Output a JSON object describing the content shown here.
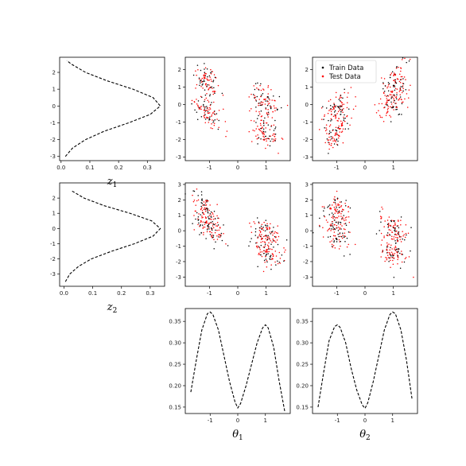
{
  "legend": {
    "entries": [
      {
        "label": "Train Data",
        "color": "#000000"
      },
      {
        "label": "Test Data",
        "color": "#ff0000"
      }
    ],
    "placement": "upper-left"
  },
  "chart_data": [
    {
      "id": "z1-marginal",
      "type": "line",
      "orientation": "horizontal-density",
      "xlabel": {
        "base": "z",
        "sub": "1"
      },
      "xlim": [
        -0.005,
        0.36
      ],
      "ylim": [
        -3.25,
        2.9
      ],
      "xticks": [
        "0.0",
        "0.1",
        "0.2",
        "0.3"
      ],
      "yticks": [
        "-3",
        "-2",
        "-1",
        "0",
        "1",
        "2"
      ],
      "series": [
        {
          "style": "dashed",
          "color": "#000000",
          "y": [
            -3.0,
            -2.5,
            -2.0,
            -1.5,
            -1.0,
            -0.5,
            0.0,
            0.5,
            1.0,
            1.5,
            2.0,
            2.5,
            2.7
          ],
          "x": [
            0.015,
            0.04,
            0.085,
            0.15,
            0.235,
            0.31,
            0.345,
            0.32,
            0.25,
            0.16,
            0.085,
            0.035,
            0.02
          ]
        }
      ]
    },
    {
      "id": "z1-theta1-scatter",
      "type": "scatter",
      "xlim": [
        -1.85,
        1.85
      ],
      "ylim": [
        -3.2,
        2.7
      ],
      "xticks": [
        "-1",
        "0",
        "1"
      ],
      "yticks": [
        "-3",
        "-2",
        "-1",
        "0",
        "1",
        "2"
      ],
      "clusters": [
        {
          "x": -1.1,
          "y": 1.3,
          "sx": 0.22,
          "sy": 0.55,
          "rho": -0.55
        },
        {
          "x": -1.1,
          "y": -0.4,
          "sx": 0.25,
          "sy": 0.45,
          "rho": -0.55
        },
        {
          "x": 0.95,
          "y": 0.2,
          "sx": 0.25,
          "sy": 0.45,
          "rho": -0.55
        },
        {
          "x": 0.95,
          "y": -1.5,
          "sx": 0.25,
          "sy": 0.55,
          "rho": -0.55
        }
      ]
    },
    {
      "id": "z1-theta2-scatter",
      "type": "scatter",
      "xlim": [
        -1.85,
        1.85
      ],
      "ylim": [
        -3.2,
        2.7
      ],
      "xticks": [
        "-1",
        "0",
        "1"
      ],
      "yticks": [
        "-3",
        "-2",
        "-1",
        "0",
        "1",
        "2"
      ],
      "clusters": [
        {
          "x": -1.0,
          "y": -0.3,
          "sx": 0.25,
          "sy": 0.45,
          "rho": 0.6
        },
        {
          "x": -1.0,
          "y": -1.6,
          "sx": 0.22,
          "sy": 0.55,
          "rho": 0.6
        },
        {
          "x": 1.0,
          "y": 1.2,
          "sx": 0.25,
          "sy": 0.6,
          "rho": 0.6
        },
        {
          "x": 1.0,
          "y": 0.1,
          "sx": 0.25,
          "sy": 0.5,
          "rho": 0.6
        }
      ],
      "legend": true
    },
    {
      "id": "z2-marginal",
      "type": "line",
      "orientation": "horizontal-density",
      "xlabel": {
        "base": "z",
        "sub": "2"
      },
      "xlim": [
        -0.015,
        0.35
      ],
      "ylim": [
        -3.8,
        3.0
      ],
      "xticks": [
        "0.0",
        "0.1",
        "0.2",
        "0.3"
      ],
      "yticks": [
        "-3",
        "-2",
        "-1",
        "0",
        "1",
        "2"
      ],
      "series": [
        {
          "style": "dashed",
          "color": "#000000",
          "y": [
            -3.5,
            -3.0,
            -2.5,
            -2.0,
            -1.5,
            -1.0,
            -0.5,
            0.0,
            0.5,
            1.0,
            1.5,
            2.0,
            2.5
          ],
          "x": [
            0.005,
            0.02,
            0.05,
            0.095,
            0.165,
            0.245,
            0.31,
            0.335,
            0.305,
            0.23,
            0.14,
            0.07,
            0.025
          ]
        }
      ]
    },
    {
      "id": "z2-theta1-scatter",
      "type": "scatter",
      "xlim": [
        -1.85,
        1.85
      ],
      "ylim": [
        -3.6,
        3.1
      ],
      "xticks": [
        "-1",
        "0",
        "1"
      ],
      "yticks": [
        "-3",
        "-2",
        "-1",
        "0",
        "1",
        "2",
        "3"
      ],
      "clusters": [
        {
          "x": -1.1,
          "y": 1.2,
          "sx": 0.25,
          "sy": 0.6,
          "rho": -0.55
        },
        {
          "x": -1.0,
          "y": 0.2,
          "sx": 0.25,
          "sy": 0.5,
          "rho": -0.55
        },
        {
          "x": 1.0,
          "y": -0.2,
          "sx": 0.25,
          "sy": 0.5,
          "rho": -0.55
        },
        {
          "x": 1.0,
          "y": -1.3,
          "sx": 0.25,
          "sy": 0.55,
          "rho": -0.55
        }
      ]
    },
    {
      "id": "z2-theta2-scatter",
      "type": "scatter",
      "xlim": [
        -1.85,
        1.85
      ],
      "ylim": [
        -3.6,
        3.1
      ],
      "xticks": [
        "-1",
        "0",
        "1"
      ],
      "yticks": [
        "-3",
        "-2",
        "-1",
        "0",
        "1",
        "2",
        "3"
      ],
      "clusters": [
        {
          "x": -1.0,
          "y": 1.2,
          "sx": 0.25,
          "sy": 0.55,
          "rho": -0.4
        },
        {
          "x": -1.0,
          "y": -0.1,
          "sx": 0.25,
          "sy": 0.55,
          "rho": -0.4
        },
        {
          "x": 1.0,
          "y": 0.1,
          "sx": 0.25,
          "sy": 0.45,
          "rho": -0.4
        },
        {
          "x": 1.0,
          "y": -1.3,
          "sx": 0.25,
          "sy": 0.55,
          "rho": -0.4
        }
      ]
    },
    {
      "id": "theta1-marginal",
      "type": "line",
      "xlabel": {
        "base": "θ",
        "sub": "1"
      },
      "xlim": [
        -1.9,
        1.9
      ],
      "ylim": [
        0.135,
        0.38
      ],
      "xticks": [
        "-1",
        "0",
        "1"
      ],
      "yticks": [
        "0.15",
        "0.20",
        "0.25",
        "0.30",
        "0.35"
      ],
      "series": [
        {
          "style": "dashed",
          "color": "#000000",
          "x": [
            -1.7,
            -1.5,
            -1.3,
            -1.1,
            -1.0,
            -0.9,
            -0.7,
            -0.5,
            -0.3,
            -0.1,
            0.0,
            0.1,
            0.3,
            0.5,
            0.7,
            0.9,
            1.0,
            1.1,
            1.3,
            1.5,
            1.7
          ],
          "y": [
            0.185,
            0.26,
            0.33,
            0.368,
            0.372,
            0.366,
            0.33,
            0.27,
            0.21,
            0.162,
            0.148,
            0.158,
            0.2,
            0.25,
            0.3,
            0.335,
            0.342,
            0.335,
            0.29,
            0.21,
            0.14
          ]
        }
      ]
    },
    {
      "id": "theta2-marginal",
      "type": "line",
      "xlabel": {
        "base": "θ",
        "sub": "2"
      },
      "xlim": [
        -1.9,
        1.9
      ],
      "ylim": [
        0.135,
        0.38
      ],
      "xticks": [
        "-1",
        "0",
        "1"
      ],
      "yticks": [
        "0.15",
        "0.20",
        "0.25",
        "0.30",
        "0.35"
      ],
      "series": [
        {
          "style": "dashed",
          "color": "#000000",
          "x": [
            -1.7,
            -1.5,
            -1.3,
            -1.1,
            -1.0,
            -0.9,
            -0.7,
            -0.5,
            -0.3,
            -0.1,
            0.0,
            0.1,
            0.3,
            0.5,
            0.7,
            0.9,
            1.0,
            1.1,
            1.3,
            1.5,
            1.7
          ],
          "y": [
            0.15,
            0.23,
            0.305,
            0.338,
            0.342,
            0.336,
            0.3,
            0.24,
            0.19,
            0.155,
            0.147,
            0.16,
            0.21,
            0.27,
            0.33,
            0.366,
            0.372,
            0.368,
            0.33,
            0.26,
            0.17
          ]
        }
      ]
    }
  ]
}
